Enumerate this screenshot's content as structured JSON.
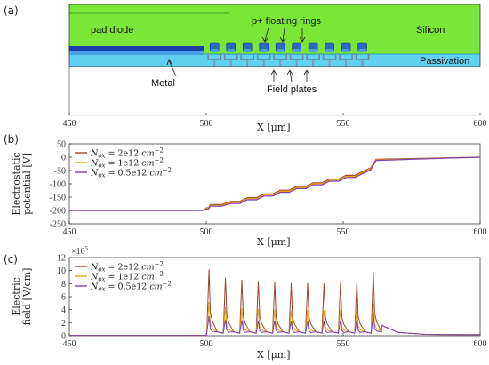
{
  "panels": {
    "a": "(a)",
    "b": "(b)",
    "c": "(c)"
  },
  "device": {
    "labels": {
      "pad_diode": "pad diode",
      "rings": "p+ floating rings",
      "silicon": "Silicon",
      "passivation": "Passivation",
      "metal": "Metal",
      "field_plates": "Field plates"
    },
    "xlabel": "X [μm]",
    "x_ticks": [
      "450",
      "500",
      "550",
      "600"
    ],
    "xlim": [
      450,
      600
    ],
    "ring_centers_um": [
      503,
      509,
      515,
      521,
      527,
      533,
      539,
      545,
      551,
      557
    ],
    "colors": {
      "silicon": "#7ae637",
      "passivation": "#5fd0f0",
      "metal_dark": "#1b3fa8",
      "metal_light": "#4aa0e8",
      "ring": "#2b67c9"
    }
  },
  "chart_data": [
    {
      "type": "line",
      "panel": "b",
      "xlabel": "X [μm]",
      "ylabel": "Electrostatic potential [V]",
      "ylabel_lines": [
        "Electrostatic",
        "potential [V]"
      ],
      "xlim": [
        450,
        600
      ],
      "ylim": [
        -250,
        50
      ],
      "x_ticks": [
        "450",
        "500",
        "550",
        "600"
      ],
      "y_ticks": [
        "50",
        "0",
        "-50",
        "-100",
        "-150",
        "-200",
        "-250"
      ],
      "grid": false,
      "legend": "top-left",
      "series": [
        {
          "name": "N_ox = 2e12 cm^-2",
          "legend_main": "N",
          "legend_sub": "ox",
          "legend_rest": " = 2e12 ",
          "legend_unit": "cm",
          "legend_exp": "−2",
          "color": "#a0442a",
          "x": [
            450,
            499,
            500,
            501.5,
            509,
            515,
            521,
            527,
            533,
            539,
            545,
            551,
            557,
            560,
            562,
            600
          ],
          "y": [
            -200,
            -200,
            -190,
            -178,
            -166,
            -152,
            -138,
            -124,
            -110,
            -96,
            -82,
            -68,
            -54,
            -40,
            -8,
            0
          ]
        },
        {
          "name": "N_ox = 1e12 cm^-2",
          "legend_main": "N",
          "legend_sub": "ox",
          "legend_rest": " = 1e12 ",
          "legend_unit": "cm",
          "legend_exp": "−2",
          "color": "#e8a317",
          "x": [
            450,
            499,
            500,
            501.5,
            509,
            515,
            521,
            527,
            533,
            539,
            545,
            551,
            557,
            560,
            562,
            600
          ],
          "y": [
            -200,
            -200,
            -192,
            -181,
            -170,
            -156,
            -142,
            -128,
            -114,
            -100,
            -86,
            -72,
            -58,
            -44,
            -10,
            0
          ]
        },
        {
          "name": "N_ox = 0.5e12 cm^-2",
          "legend_main": "N",
          "legend_sub": "ox",
          "legend_rest": " = 0.5e12 ",
          "legend_unit": "cm",
          "legend_exp": "−2",
          "color": "#7b3fb0",
          "x": [
            450,
            499,
            500,
            501.5,
            509,
            515,
            521,
            527,
            533,
            539,
            545,
            551,
            557,
            560,
            562,
            600
          ],
          "y": [
            -200,
            -200,
            -195,
            -184,
            -174,
            -160,
            -146,
            -132,
            -118,
            -104,
            -90,
            -76,
            -62,
            -48,
            -12,
            0
          ]
        }
      ]
    },
    {
      "type": "line",
      "panel": "c",
      "xlabel": "X [μm]",
      "ylabel": "Electric field [V/cm]",
      "ylabel_lines": [
        "Electric",
        "field [V/cm]"
      ],
      "y_multiplier": "×10",
      "y_multiplier_exp": "5",
      "xlim": [
        450,
        600
      ],
      "ylim": [
        0,
        12
      ],
      "x_ticks": [
        "450",
        "500",
        "550",
        "600"
      ],
      "y_ticks": [
        "12",
        "10",
        "8",
        "6",
        "4",
        "2",
        "0"
      ],
      "grid": false,
      "legend": "top-left",
      "peak_x": [
        501,
        507,
        513,
        519,
        525,
        531,
        537,
        543,
        549,
        555,
        561
      ],
      "series": [
        {
          "name": "N_ox = 2e12 cm^-2",
          "legend_main": "N",
          "legend_sub": "ox",
          "legend_rest": " = 2e12 ",
          "legend_unit": "cm",
          "legend_exp": "−2",
          "color": "#a0442a",
          "peaks": [
            10.2,
            8.9,
            8.6,
            8.4,
            8.2,
            8.1,
            8.1,
            8.0,
            8.1,
            8.3,
            9.8
          ]
        },
        {
          "name": "N_ox = 1e12 cm^-2",
          "legend_main": "N",
          "legend_sub": "ox",
          "legend_rest": " = 1e12 ",
          "legend_unit": "cm",
          "legend_exp": "−2",
          "color": "#e8a317",
          "peaks": [
            5.2,
            4.4,
            4.2,
            4.1,
            4.0,
            3.9,
            3.9,
            3.9,
            4.0,
            4.1,
            5.0
          ]
        },
        {
          "name": "N_ox = 0.5e12 cm^-2",
          "legend_main": "N",
          "legend_sub": "ox",
          "legend_rest": " = 0.5e12 ",
          "legend_unit": "cm",
          "legend_exp": "−2",
          "color": "#7b3fb0",
          "peaks": [
            3.0,
            2.5,
            2.4,
            2.3,
            2.3,
            2.2,
            2.2,
            2.2,
            2.3,
            2.4,
            3.2
          ]
        }
      ]
    }
  ]
}
